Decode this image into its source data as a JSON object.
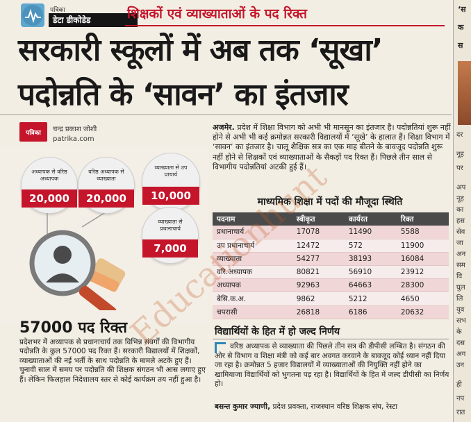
{
  "header": {
    "badge_top": "पत्रिका",
    "badge_main": "डेटा डीकोडेड",
    "kicker": "शिक्षकों एवं व्याख्याताओं के पद रिक्त"
  },
  "headline": {
    "line1": "सरकारी स्कूलों में अब तक ‘सूखा’",
    "line2": "पदोन्नति के ‘सावन’ का इंतजार"
  },
  "byline": {
    "logo": "पत्रिका",
    "name": "चन्द्र प्रकाश जोशी",
    "website": "patrika.com"
  },
  "infographic": {
    "bubbles": [
      {
        "label": "अध्यापक से वरिष्ठ अध्यापक",
        "value": "20,000"
      },
      {
        "label": "वरिष्ठ अध्यापक से व्याख्याता",
        "value": "20,000"
      },
      {
        "label": "व्याख्याता से उप प्राचार्य",
        "value": "10,000"
      },
      {
        "label": "व्याख्याता से प्रधानाचार्य",
        "value": "7,000"
      }
    ]
  },
  "stat": {
    "number": "57000 पद रिक्त"
  },
  "left_body": "प्रदेशभर में अध्यापक से प्रधानाचार्य तक विभिन्न संवर्गों की विभागीय पदोन्नति के कुल 57000 पद रिक्त हैं। सरकारी विद्यालयों में शिक्षकों, व्याख्याताओं की नई भर्ती के साथ पदोन्नति के मामले अटके हुए हैं। चुनावी साल में समय पर पदोन्नति की शिक्षक संगठन भी आस लगाए हुए हैं। लेकिन फिलहाल निदेशालय स्तर से कोई कार्यक्रम तय नहीं हुआ है।",
  "lead": {
    "dateline": "अजमेर.",
    "text": "प्रदेश में शिक्षा विभाग को अभी भी मानसून का इंतजार है। पदोन्नतियां शुरू नहीं होने से अभी भी कई क्रमोन्नत सरकारी विद्यालयों में ‘सूखे’ के हालात हैं। शिक्षा विभाग में ‘सावन’ का इंतजार है। चालू शैक्षिक सत्र का एक माह बीतने के बावजूद पदोन्नति शुरू नहीं होने से शिक्षकों एवं व्याख्याताओं के सैकड़ों पद रिक्त हैं। पिछले तीन साल से विभागीय पदोन्नतियां अटकी हुई हैं।"
  },
  "table": {
    "title": "माध्यमिक शिक्षा में पदों की मौजूदा स्थिति",
    "headers": [
      "पदनाम",
      "स्वीकृत",
      "कार्यरत",
      "रिक्त"
    ],
    "rows": [
      [
        "प्रधानाचार्य",
        "17078",
        "11490",
        "5588"
      ],
      [
        "उप प्रधानाचार्य",
        "12472",
        "572",
        "11900"
      ],
      [
        "व्याख्याता",
        "54277",
        "38193",
        "16084"
      ],
      [
        "वरि.अध्यापक",
        "80821",
        "56910",
        "23912"
      ],
      [
        "अध्यापक",
        "92963",
        "64663",
        "28300"
      ],
      [
        "बेसि.क.अ.",
        "9862",
        "5212",
        "4650"
      ],
      [
        "चपरासी",
        "26818",
        "6186",
        "20632"
      ]
    ]
  },
  "subsection": {
    "title": "विद्यार्थियों के हित में हो जल्द निर्णय",
    "body": "वरिष्ठ अध्यापक से व्याख्याता की पिछले तीन सत्र की डीपीसी लम्बित है। संगठन की ओर से विभाग व शिक्षा मंत्री को कई बार अवगत करवाने के बावजूद कोई ध्यान नहीं दिया जा रहा है। क्रमोन्नत 5 हजार विद्यालयों में व्याख्याताओं की नियुक्ति नहीं होने का खामियाजा विद्यार्थियों को भुगतना पड़ रहा है। विद्यार्थियों के हित में जल्द डीपीसी का निर्णय हो।",
    "attrib_name": "बसन्त कुमार ज्याणी,",
    "attrib_role": "प्रदेश प्रवक्ता, राजस्थान वरिष्ठ शिक्षक संघ, रेस्टा"
  },
  "edge_column": {
    "lines": [
      "‘स",
      "क",
      "स"
    ],
    "small": [
      "दर",
      "नूह",
      "पर",
      "अप",
      "नूह",
      "का",
      "हस",
      "सेव",
      "जा",
      "अन",
      "सम",
      "वि",
      "घुल",
      "लि",
      "युव",
      "सभ",
      "के",
      "दस",
      "अग",
      "उन",
      "ही",
      "नप",
      "रात"
    ]
  },
  "watermark": "Educationhunt",
  "colors": {
    "accent_red": "#c4152b",
    "paper": "#f3eee3",
    "table_header": "#4a4a4a",
    "table_row_odd": "#f0d6d6",
    "table_row_even": "#f7ecec"
  }
}
